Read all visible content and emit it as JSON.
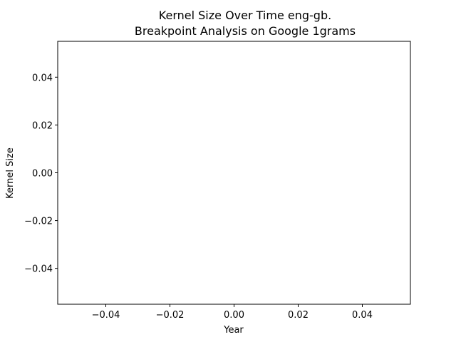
{
  "chart_data": {
    "type": "line",
    "title": "Kernel Size Over Time eng-gb.",
    "subtitle": "Breakpoint Analysis on Google 1grams",
    "xlabel": "Year",
    "ylabel": "Kernel Size",
    "xlim": [
      -0.055,
      0.055
    ],
    "ylim": [
      -0.055,
      0.055
    ],
    "xticks": [
      -0.04,
      -0.02,
      0.0,
      0.02,
      0.04
    ],
    "xtick_labels": [
      "−0.04",
      "−0.02",
      "0.00",
      "0.02",
      "0.04"
    ],
    "yticks": [
      -0.04,
      -0.02,
      0.0,
      0.02,
      0.04
    ],
    "ytick_labels": [
      "−0.04",
      "−0.02",
      "0.00",
      "0.02",
      "0.04"
    ],
    "grid": false,
    "series": [],
    "colors": {
      "axis": "#000000",
      "background": "#ffffff"
    }
  }
}
